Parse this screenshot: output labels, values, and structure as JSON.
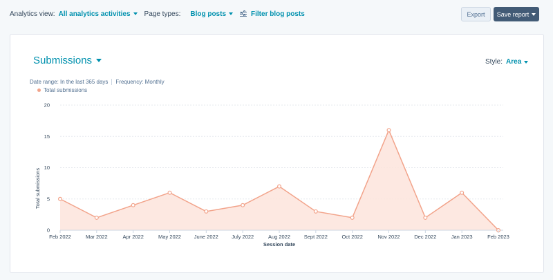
{
  "toolbar": {
    "analytics_view_label": "Analytics view:",
    "analytics_view_value": "All analytics activities",
    "page_types_label": "Page types:",
    "page_types_value": "Blog posts",
    "filter_label": "Filter blog posts",
    "export_label": "Export",
    "save_label": "Save report"
  },
  "report": {
    "title": "Submissions",
    "style_label": "Style:",
    "style_value": "Area",
    "date_range": "Date range:  In the last 365 days",
    "frequency": "Frequency:  Monthly"
  },
  "colors": {
    "accent": "#0091ae",
    "series_line": "#f2a38a",
    "series_fill": "#fde4dc"
  },
  "chart_data": {
    "type": "area",
    "xlabel": "Session date",
    "ylabel": "Total submissions",
    "ylim": [
      0,
      20
    ],
    "yticks": [
      0,
      5,
      10,
      15,
      20
    ],
    "grid": true,
    "legend_position": "top-left",
    "categories": [
      "Feb 2022",
      "Mar 2022",
      "Apr 2022",
      "May 2022",
      "June 2022",
      "July 2022",
      "Aug 2022",
      "Sept 2022",
      "Oct 2022",
      "Nov 2022",
      "Dec 2022",
      "Jan 2023",
      "Feb 2023"
    ],
    "series": [
      {
        "name": "Total submissions",
        "values": [
          5,
          2,
          4,
          6,
          3,
          4,
          7,
          3,
          2,
          16,
          2,
          6,
          0
        ]
      }
    ]
  }
}
